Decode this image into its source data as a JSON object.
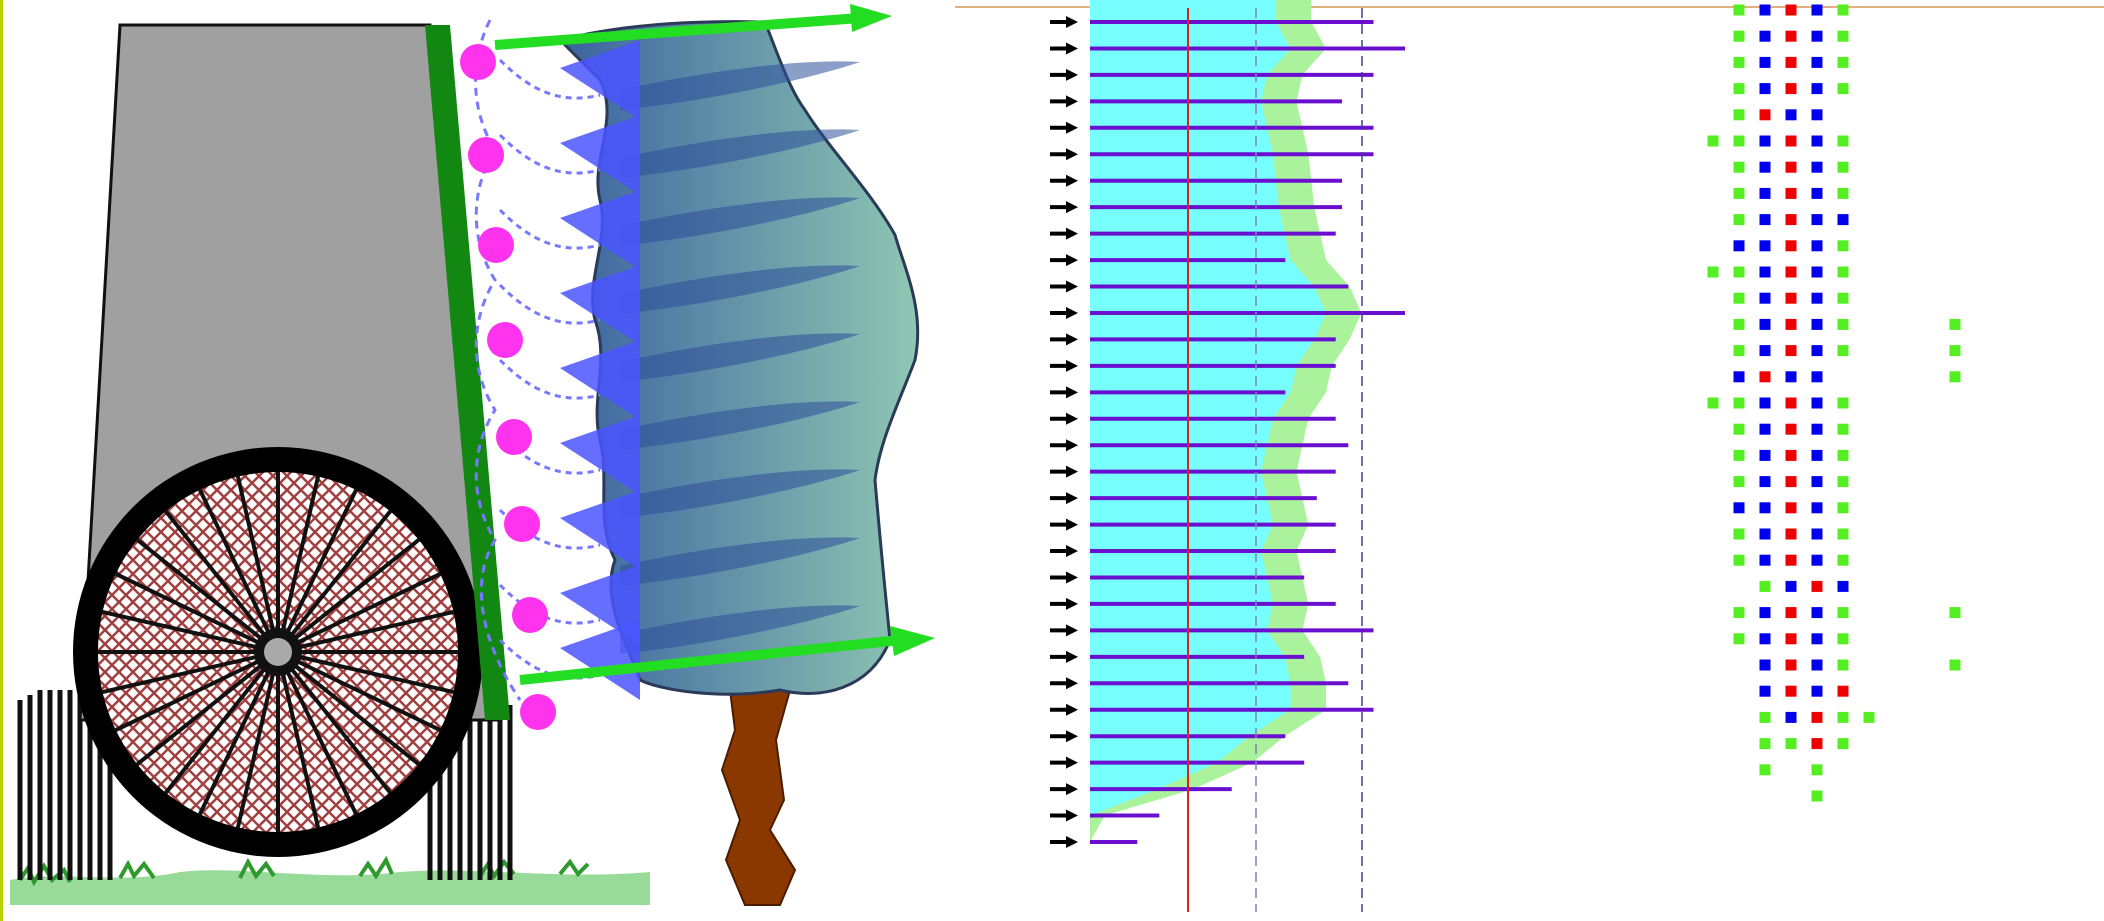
{
  "colors": {
    "background": "#ffffff",
    "frame_edge_left": "#b6d200",
    "top_rule": "#e0b080",
    "machine_body": "#a0a0a0",
    "machine_outline": "#101010",
    "green_bar": "#128712",
    "bright_green": "#22dd22",
    "magenta_balls": "#ff33ee",
    "light_purple": "#7777ff",
    "cone_blue": "#4a55ff",
    "tree_crown_a": "#3a62a0",
    "tree_crown_b": "#8fc7b2",
    "trunk_brown": "#8b3800",
    "wheel_black": "#000000",
    "wheel_lattice": "#a04040",
    "grass_green": "#44bb44",
    "cyan_fill": "#77ffff",
    "light_green_fill": "#aaf29c",
    "purple_line": "#6a0fd0",
    "red_line": "#e02020",
    "dashed_line": "#8080c0",
    "dot_green": "#55ee22",
    "dot_blue": "#0000ee",
    "dot_red": "#ee0000"
  },
  "panels": {
    "illustration": {
      "icon": "orchard-sprayer-illustration"
    },
    "profile": {
      "icon": "canopy-deposition-profile",
      "rows": 32
    },
    "grid": {
      "icon": "nozzle-dot-grid"
    }
  },
  "deposition_profile": {
    "row_count": 32,
    "bar_length_fraction": [
      0.9,
      1.0,
      0.9,
      0.8,
      0.9,
      0.9,
      0.8,
      0.8,
      0.78,
      0.62,
      0.82,
      1.0,
      0.78,
      0.78,
      0.62,
      0.78,
      0.82,
      0.78,
      0.72,
      0.78,
      0.78,
      0.68,
      0.78,
      0.9,
      0.68,
      0.82,
      0.9,
      0.62,
      0.68,
      0.45,
      0.22,
      0.15
    ],
    "fill_level": [
      0.75,
      0.8,
      0.72,
      0.7,
      0.72,
      0.74,
      0.75,
      0.76,
      0.78,
      0.8,
      0.88,
      0.92,
      0.88,
      0.82,
      0.8,
      0.74,
      0.72,
      0.7,
      0.72,
      0.74,
      0.7,
      0.72,
      0.74,
      0.72,
      0.78,
      0.8,
      0.8,
      0.66,
      0.55,
      0.35,
      0.05,
      0.0
    ]
  },
  "nozzle_grid": {
    "rows": [
      [
        "",
        "g",
        "b",
        "r",
        "b",
        "g",
        ""
      ],
      [
        "",
        "g",
        "b",
        "r",
        "b",
        "g",
        ""
      ],
      [
        "",
        "g",
        "b",
        "r",
        "b",
        "g",
        ""
      ],
      [
        "",
        "g",
        "b",
        "r",
        "b",
        "g",
        ""
      ],
      [
        "",
        "g",
        "r",
        "b",
        "b",
        "",
        ""
      ],
      [
        "g",
        "g",
        "b",
        "r",
        "b",
        "g",
        ""
      ],
      [
        "",
        "g",
        "b",
        "r",
        "b",
        "g",
        ""
      ],
      [
        "",
        "g",
        "b",
        "r",
        "b",
        "g",
        ""
      ],
      [
        "",
        "g",
        "b",
        "r",
        "b",
        "b",
        ""
      ],
      [
        "",
        "b",
        "b",
        "r",
        "b",
        "g",
        ""
      ],
      [
        "g",
        "g",
        "b",
        "r",
        "b",
        "g",
        ""
      ],
      [
        "",
        "g",
        "b",
        "r",
        "b",
        "g",
        ""
      ],
      [
        "",
        "g",
        "b",
        "r",
        "b",
        "g",
        ""
      ],
      [
        "",
        "g",
        "b",
        "r",
        "b",
        "g",
        ""
      ],
      [
        "",
        "b",
        "r",
        "b",
        "b",
        "",
        ""
      ],
      [
        "g",
        "g",
        "b",
        "r",
        "b",
        "g",
        ""
      ],
      [
        "",
        "g",
        "b",
        "r",
        "b",
        "g",
        ""
      ],
      [
        "",
        "g",
        "b",
        "r",
        "b",
        "g",
        ""
      ],
      [
        "",
        "g",
        "b",
        "r",
        "b",
        "g",
        ""
      ],
      [
        "",
        "b",
        "b",
        "r",
        "b",
        "g",
        ""
      ],
      [
        "",
        "g",
        "b",
        "r",
        "b",
        "g",
        ""
      ],
      [
        "",
        "g",
        "b",
        "r",
        "b",
        "g",
        ""
      ],
      [
        "",
        "",
        "g",
        "b",
        "r",
        "b",
        ""
      ],
      [
        "",
        "g",
        "b",
        "r",
        "b",
        "g",
        ""
      ],
      [
        "",
        "g",
        "b",
        "r",
        "b",
        "g",
        ""
      ],
      [
        "",
        "",
        "b",
        "r",
        "b",
        "g",
        ""
      ],
      [
        "",
        "",
        "b",
        "r",
        "b",
        "r",
        ""
      ],
      [
        "",
        "",
        "g",
        "b",
        "r",
        "g",
        "g"
      ],
      [
        "",
        "",
        "g",
        "g",
        "r",
        "g",
        ""
      ],
      [
        "",
        "",
        "g",
        "",
        "g",
        "",
        ""
      ],
      [
        "",
        "",
        "",
        "",
        "g",
        "",
        ""
      ]
    ],
    "outliers": [
      [
        12,
        7
      ],
      [
        13,
        7
      ],
      [
        14,
        7
      ],
      [
        23,
        7
      ],
      [
        25,
        7
      ]
    ]
  }
}
